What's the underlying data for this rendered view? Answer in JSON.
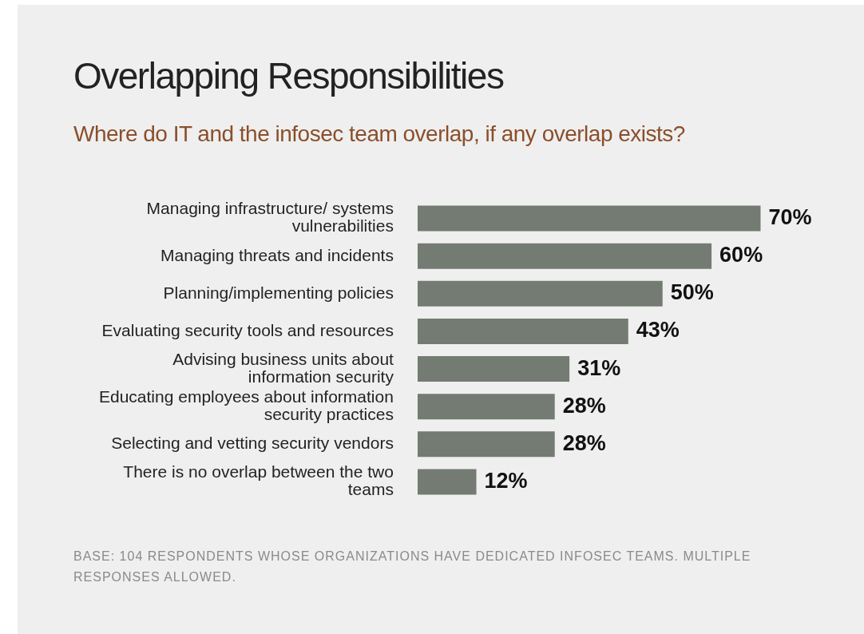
{
  "chart_data": {
    "type": "bar",
    "orientation": "horizontal",
    "title": "Overlapping Responsibilities",
    "subtitle": "Where do IT and the infosec team overlap, if any overlap exists?",
    "categories": [
      "Managing infrastructure/ systems vulnerabilities",
      "Managing threats and incidents",
      "Planning/implementing policies",
      "Evaluating security tools and resources",
      "Advising business units about information security",
      "Educating employees about information security practices",
      "Selecting and vetting security vendors",
      "There is no overlap between the two teams"
    ],
    "values": [
      70,
      60,
      50,
      43,
      31,
      28,
      28,
      12
    ],
    "value_labels": [
      "70%",
      "60%",
      "50%",
      "43%",
      "31%",
      "28%",
      "28%",
      "12%"
    ],
    "color": "#737b72",
    "annotations": [
      "BASE: 104 RESPONDENTS WHOSE ORGANIZATIONS HAVE DEDICATED INFOSEC TEAMS. MULTIPLE RESPONSES ALLOWED."
    ]
  }
}
